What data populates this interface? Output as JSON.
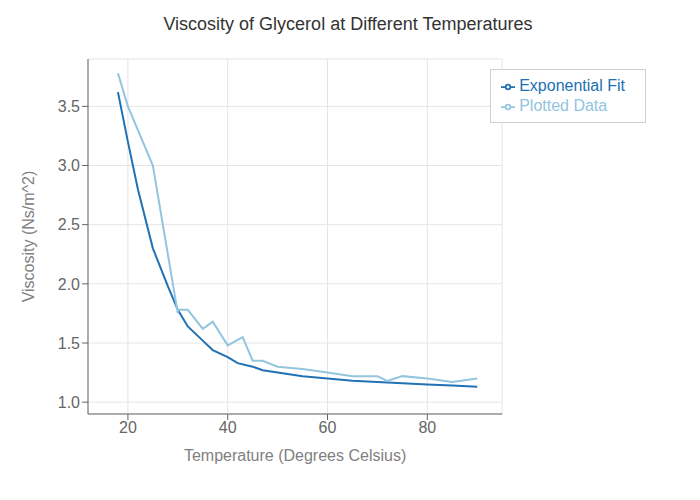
{
  "chart_data": {
    "type": "line",
    "title": "Viscosity of Glycerol at Different Temperatures",
    "xlabel": "Temperature (Degrees Celsius)",
    "ylabel": "Viscosity (Ns/m^2)",
    "series": [
      {
        "name": "Exponential Fit",
        "color": "#2171B5",
        "x": [
          18,
          20,
          22,
          25,
          28,
          30,
          32,
          35,
          37,
          40,
          42,
          45,
          47,
          50,
          55,
          60,
          65,
          70,
          75,
          80,
          85,
          90
        ],
        "values": [
          3.62,
          3.2,
          2.8,
          2.3,
          1.98,
          1.78,
          1.64,
          1.52,
          1.44,
          1.38,
          1.33,
          1.3,
          1.27,
          1.25,
          1.22,
          1.2,
          1.18,
          1.17,
          1.16,
          1.15,
          1.14,
          1.13
        ]
      },
      {
        "name": "Plotted Data",
        "color": "#92C5DE",
        "x": [
          18,
          20,
          25,
          30,
          30,
          32,
          35,
          37,
          40,
          43,
          45,
          47,
          50,
          55,
          60,
          65,
          70,
          72,
          75,
          80,
          85,
          90
        ],
        "values": [
          3.78,
          3.5,
          3.0,
          1.75,
          1.78,
          1.78,
          1.62,
          1.68,
          1.48,
          1.55,
          1.35,
          1.35,
          1.3,
          1.28,
          1.25,
          1.22,
          1.22,
          1.18,
          1.22,
          1.2,
          1.17,
          1.2
        ]
      }
    ],
    "xlim": [
      12,
      95
    ],
    "ylim": [
      0.9,
      3.9
    ],
    "xticks": [
      20,
      40,
      60,
      80
    ],
    "yticks": [
      {
        "value": 1,
        "label": "1.0"
      },
      1.5,
      {
        "value": 2,
        "label": "2.0"
      },
      2.5,
      {
        "value": 3,
        "label": "3.0"
      },
      3.5
    ],
    "grid": true,
    "legend": "upper right"
  }
}
